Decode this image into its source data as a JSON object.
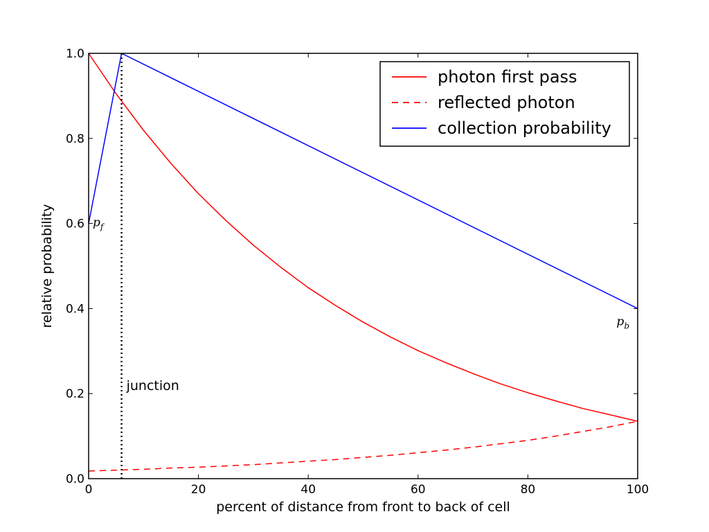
{
  "chart_data": {
    "type": "line",
    "title": "",
    "xlabel": "percent of distance from front to back of cell",
    "ylabel": "relative probability",
    "xlim": [
      0,
      100
    ],
    "ylim": [
      0.0,
      1.0
    ],
    "xticks": [
      "0",
      "20",
      "40",
      "60",
      "80",
      "100"
    ],
    "yticks": [
      "0.0",
      "0.2",
      "0.4",
      "0.6",
      "0.8",
      "1.0"
    ],
    "grid": false,
    "legend_position": "top-right",
    "series": [
      {
        "name": "photon first pass",
        "style": "solid",
        "color": "#ff0000",
        "x": [
          0,
          5,
          10,
          15,
          20,
          25,
          30,
          35,
          40,
          45,
          50,
          55,
          60,
          65,
          70,
          75,
          80,
          85,
          90,
          95,
          100
        ],
        "y": [
          1.0,
          0.905,
          0.819,
          0.741,
          0.67,
          0.607,
          0.549,
          0.497,
          0.449,
          0.407,
          0.368,
          0.333,
          0.301,
          0.273,
          0.247,
          0.223,
          0.202,
          0.183,
          0.165,
          0.15,
          0.135
        ]
      },
      {
        "name": "reflected photon",
        "style": "dashed",
        "color": "#ff0000",
        "x": [
          0,
          5,
          10,
          15,
          20,
          25,
          30,
          35,
          40,
          45,
          50,
          55,
          60,
          65,
          70,
          75,
          80,
          85,
          90,
          95,
          100
        ],
        "y": [
          0.018,
          0.02,
          0.022,
          0.025,
          0.027,
          0.03,
          0.033,
          0.037,
          0.041,
          0.045,
          0.05,
          0.055,
          0.061,
          0.067,
          0.074,
          0.082,
          0.09,
          0.1,
          0.111,
          0.122,
          0.135
        ]
      },
      {
        "name": "collection probability",
        "style": "solid",
        "color": "#0000ff",
        "x": [
          0,
          6,
          100
        ],
        "y": [
          0.6,
          1.0,
          0.4
        ]
      }
    ],
    "junction": {
      "x": 6,
      "label": "junction",
      "color": "#000000"
    },
    "annotations": [
      {
        "id": "pf",
        "base": "p",
        "sub": "f",
        "x": 0,
        "y": 0.6
      },
      {
        "id": "pb",
        "base": "p",
        "sub": "b",
        "x": 100,
        "y": 0.4
      }
    ]
  }
}
